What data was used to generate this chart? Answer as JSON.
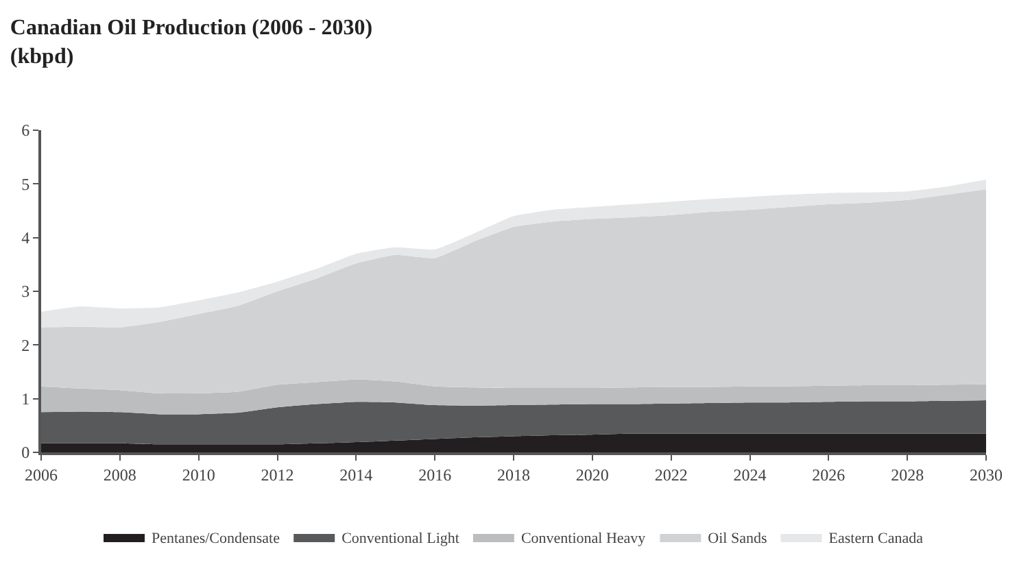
{
  "chart_data": {
    "type": "area",
    "title": "Canadian Oil Production (2006 - 2030)\n(kbpd)",
    "stacked": true,
    "x": [
      2006,
      2007,
      2008,
      2009,
      2010,
      2011,
      2012,
      2013,
      2014,
      2015,
      2016,
      2017,
      2018,
      2019,
      2020,
      2021,
      2022,
      2023,
      2024,
      2025,
      2026,
      2027,
      2028,
      2029,
      2030
    ],
    "series": [
      {
        "name": "Pentanes/Condensate",
        "color": "#231f20",
        "values": [
          0.17,
          0.17,
          0.17,
          0.15,
          0.15,
          0.15,
          0.15,
          0.17,
          0.19,
          0.22,
          0.25,
          0.28,
          0.3,
          0.32,
          0.33,
          0.35,
          0.35,
          0.35,
          0.35,
          0.35,
          0.35,
          0.35,
          0.35,
          0.35,
          0.35
        ]
      },
      {
        "name": "Conventional Light",
        "color": "#58595b",
        "values": [
          0.58,
          0.59,
          0.58,
          0.56,
          0.56,
          0.59,
          0.69,
          0.73,
          0.75,
          0.71,
          0.63,
          0.59,
          0.58,
          0.57,
          0.57,
          0.55,
          0.56,
          0.57,
          0.58,
          0.58,
          0.59,
          0.6,
          0.6,
          0.61,
          0.62
        ]
      },
      {
        "name": "Conventional Heavy",
        "color": "#bcbdbf",
        "values": [
          0.48,
          0.43,
          0.41,
          0.39,
          0.39,
          0.39,
          0.42,
          0.41,
          0.42,
          0.39,
          0.35,
          0.34,
          0.32,
          0.31,
          0.3,
          0.31,
          0.31,
          0.3,
          0.3,
          0.3,
          0.3,
          0.3,
          0.3,
          0.3,
          0.3
        ]
      },
      {
        "name": "Oil Sands",
        "color": "#d1d2d4",
        "values": [
          1.1,
          1.15,
          1.17,
          1.33,
          1.48,
          1.6,
          1.74,
          1.93,
          2.16,
          2.36,
          2.39,
          2.72,
          3.0,
          3.1,
          3.15,
          3.17,
          3.2,
          3.26,
          3.29,
          3.34,
          3.38,
          3.4,
          3.45,
          3.54,
          3.63
        ]
      },
      {
        "name": "Eastern Canada",
        "color": "#e6e7e8",
        "values": [
          0.29,
          0.38,
          0.35,
          0.27,
          0.25,
          0.25,
          0.18,
          0.18,
          0.18,
          0.14,
          0.16,
          0.15,
          0.2,
          0.22,
          0.22,
          0.24,
          0.25,
          0.24,
          0.24,
          0.23,
          0.21,
          0.19,
          0.16,
          0.15,
          0.18
        ]
      }
    ],
    "xlim": [
      2006,
      2030
    ],
    "xticks": [
      2006,
      2008,
      2010,
      2012,
      2014,
      2016,
      2018,
      2020,
      2022,
      2024,
      2026,
      2028,
      2030
    ],
    "ylim": [
      0,
      6
    ],
    "yticks": [
      0,
      1,
      2,
      3,
      4,
      5,
      6
    ],
    "legend": "bottom",
    "marker": "none"
  }
}
